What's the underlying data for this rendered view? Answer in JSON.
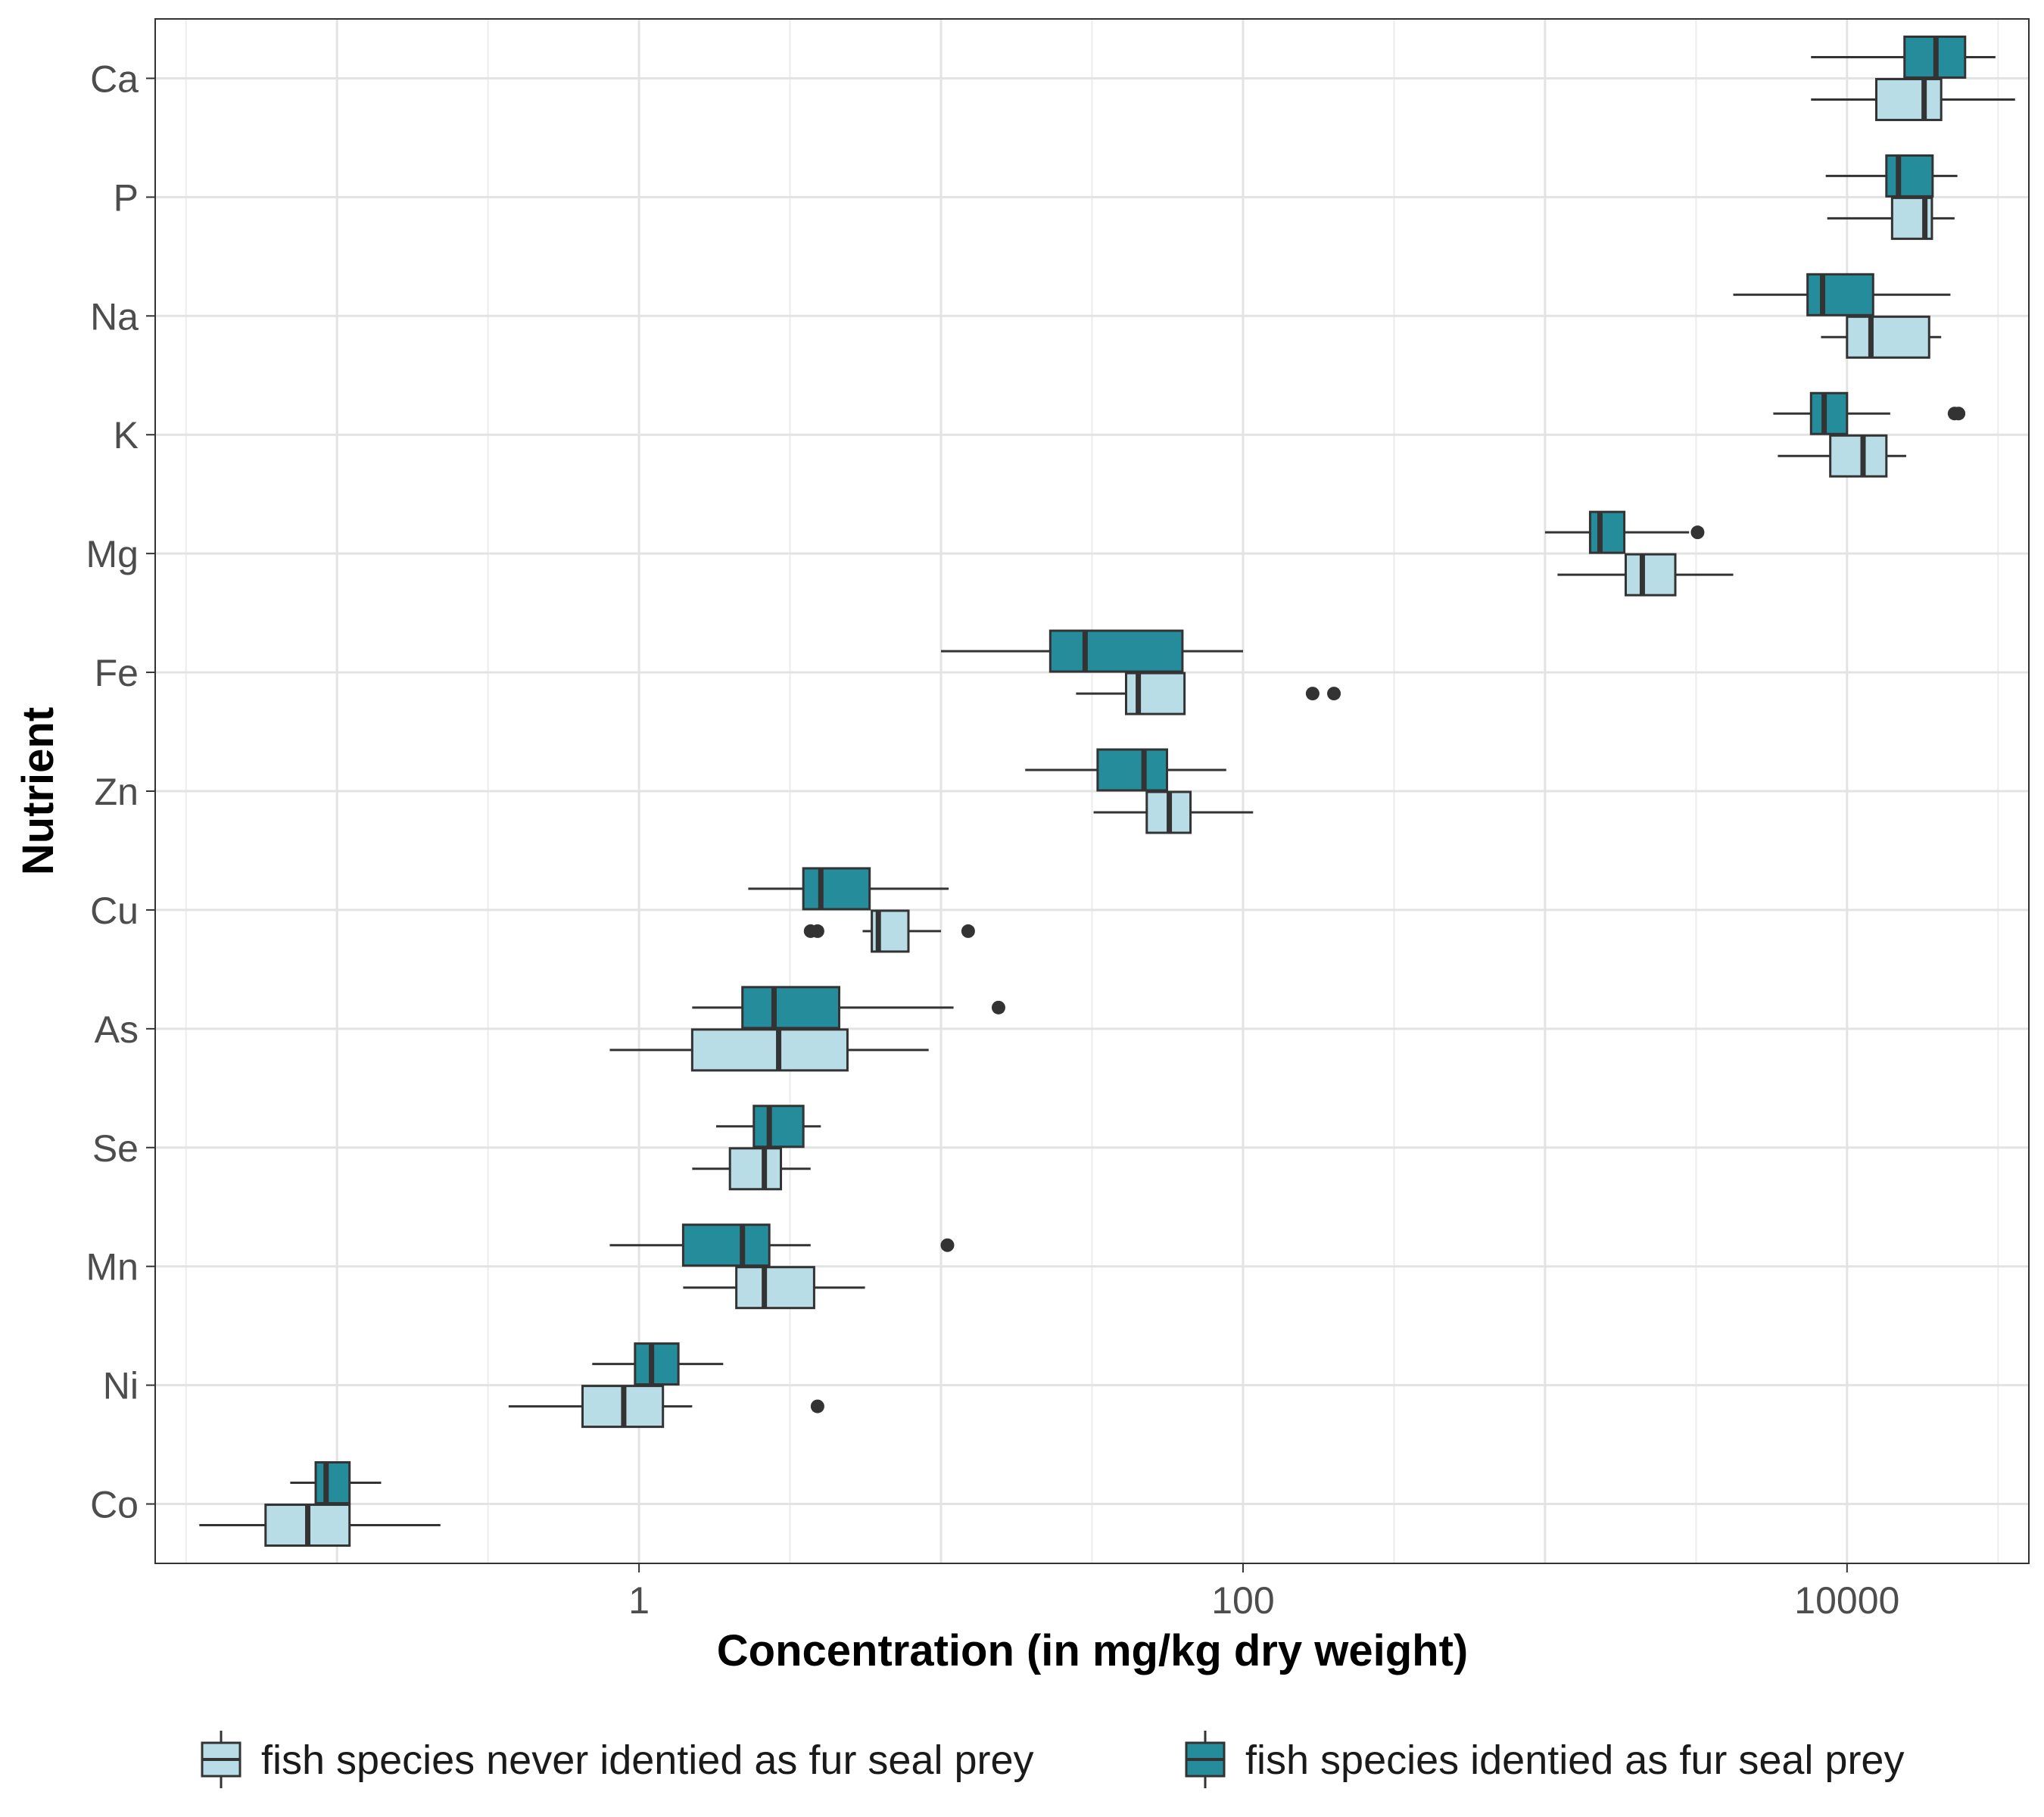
{
  "chart_data": {
    "type": "boxplot",
    "orientation": "horizontal",
    "xscale": "log10",
    "xlabel": "Concentration (in mg/kg dry weight)",
    "ylabel": "Nutrient",
    "xlim": [
      0.025,
      40000
    ],
    "x_ticks": [
      1,
      100,
      10000
    ],
    "x_tick_labels": [
      "1",
      "100",
      "10000"
    ],
    "grid": true,
    "legend_position": "bottom",
    "categories": [
      "Ca",
      "P",
      "Na",
      "K",
      "Mg",
      "Fe",
      "Zn",
      "Cu",
      "As",
      "Se",
      "Mn",
      "Ni",
      "Co"
    ],
    "series": [
      {
        "name": "fish species never identied as fur seal prey",
        "color": "#b9dde7",
        "boxes": [
          {
            "min": 7600,
            "q1": 12500,
            "median": 18000,
            "q3": 20500,
            "max": 36000,
            "outliers": []
          },
          {
            "min": 8600,
            "q1": 14100,
            "median": 18100,
            "q3": 19100,
            "max": 22700,
            "outliers": []
          },
          {
            "min": 8200,
            "q1": 10000,
            "median": 12000,
            "q3": 18700,
            "max": 20500,
            "outliers": []
          },
          {
            "min": 5900,
            "q1": 8800,
            "median": 11300,
            "q3": 13500,
            "max": 15700,
            "outliers": []
          },
          {
            "min": 1100,
            "q1": 1850,
            "median": 2100,
            "q3": 2700,
            "max": 4200,
            "outliers": []
          },
          {
            "min": 28,
            "q1": 41,
            "median": 45,
            "q3": 64,
            "max": 64,
            "outliers": [
              170,
              200
            ]
          },
          {
            "min": 32,
            "q1": 48,
            "median": 57,
            "q3": 67,
            "max": 108,
            "outliers": []
          },
          {
            "min": 5.5,
            "q1": 5.9,
            "median": 6.2,
            "q3": 7.8,
            "max": 10,
            "outliers": [
              3.7,
              3.9,
              12.3
            ]
          },
          {
            "min": 0.8,
            "q1": 1.5,
            "median": 2.9,
            "q3": 4.9,
            "max": 9.1,
            "outliers": []
          },
          {
            "min": 1.5,
            "q1": 2.0,
            "median": 2.6,
            "q3": 2.95,
            "max": 3.7,
            "outliers": []
          },
          {
            "min": 1.4,
            "q1": 2.1,
            "median": 2.6,
            "q3": 3.8,
            "max": 5.6,
            "outliers": []
          },
          {
            "min": 0.37,
            "q1": 0.65,
            "median": 0.89,
            "q3": 1.2,
            "max": 1.5,
            "outliers": [
              3.9
            ]
          },
          {
            "min": 0.035,
            "q1": 0.058,
            "median": 0.08,
            "q3": 0.11,
            "max": 0.22,
            "outliers": []
          }
        ]
      },
      {
        "name": "fish species identied as fur seal prey",
        "color": "#258c9b",
        "boxes": [
          {
            "min": 7600,
            "q1": 15500,
            "median": 19700,
            "q3": 24600,
            "max": 31000,
            "outliers": []
          },
          {
            "min": 8500,
            "q1": 13500,
            "median": 14800,
            "q3": 19200,
            "max": 23200,
            "outliers": []
          },
          {
            "min": 4200,
            "q1": 7400,
            "median": 8300,
            "q3": 12200,
            "max": 22000,
            "outliers": []
          },
          {
            "min": 5700,
            "q1": 7600,
            "median": 8400,
            "q3": 10000,
            "max": 13900,
            "outliers": [
              22700,
              23400
            ]
          },
          {
            "min": 1000,
            "q1": 1410,
            "median": 1520,
            "q3": 1830,
            "max": 3000,
            "outliers": [
              3200
            ]
          },
          {
            "min": 10,
            "q1": 23,
            "median": 30,
            "q3": 63,
            "max": 100,
            "outliers": []
          },
          {
            "min": 19,
            "q1": 33,
            "median": 47,
            "q3": 56,
            "max": 88,
            "outliers": []
          },
          {
            "min": 2.3,
            "q1": 3.5,
            "median": 4.0,
            "q3": 5.8,
            "max": 10.6,
            "outliers": []
          },
          {
            "min": 1.5,
            "q1": 2.2,
            "median": 2.8,
            "q3": 4.6,
            "max": 11,
            "outliers": [
              15.5
            ]
          },
          {
            "min": 1.8,
            "q1": 2.4,
            "median": 2.7,
            "q3": 3.5,
            "max": 4.0,
            "outliers": []
          },
          {
            "min": 0.8,
            "q1": 1.4,
            "median": 2.2,
            "q3": 2.7,
            "max": 3.7,
            "outliers": [
              10.5
            ]
          },
          {
            "min": 0.7,
            "q1": 0.97,
            "median": 1.1,
            "q3": 1.35,
            "max": 1.9,
            "outliers": []
          },
          {
            "min": 0.07,
            "q1": 0.085,
            "median": 0.092,
            "q3": 0.11,
            "max": 0.14,
            "outliers": []
          }
        ]
      }
    ]
  }
}
